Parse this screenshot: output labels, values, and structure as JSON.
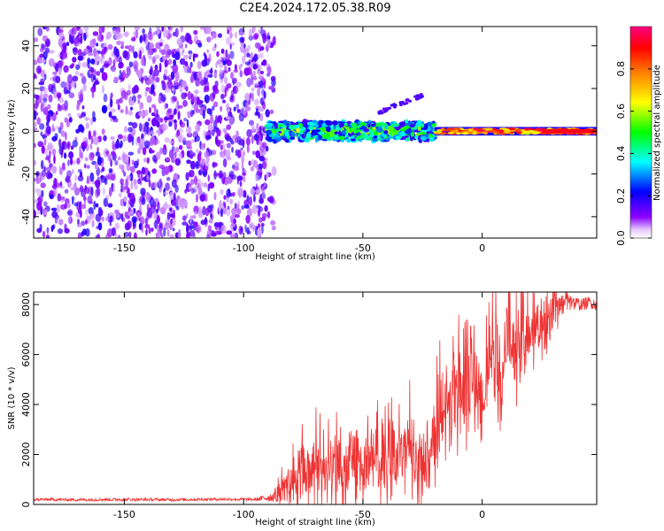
{
  "title": "C2E4.2024.172.05.38.R09",
  "chart_data": [
    {
      "type": "heatmap",
      "xlabel": "Height of straight line (km)",
      "ylabel": "Frequency (Hz)",
      "xlim": [
        -188,
        48
      ],
      "ylim": [
        -50,
        49
      ],
      "xticks": [
        -150,
        -100,
        -50,
        0
      ],
      "yticks": [
        -40,
        -20,
        0,
        20,
        40
      ],
      "colorbar": {
        "label": "Normalized spectral amplitude",
        "range": [
          0,
          1
        ],
        "ticks": [
          "0.0",
          "0.2",
          "0.4",
          "0.6",
          "0.8"
        ],
        "colors": [
          "#ffffff",
          "#e4c8ff",
          "#8b00ff",
          "#0000ff",
          "#00ffff",
          "#00ff00",
          "#ffff00",
          "#ff8000",
          "#ff0000",
          "#ff0080"
        ]
      },
      "regions": [
        {
          "x": [
            -188,
            -87
          ],
          "y": [
            -50,
            49
          ],
          "amplitude": [
            0.05,
            0.2
          ],
          "pattern": "scattered noise"
        },
        {
          "x": [
            -90,
            -20
          ],
          "y": [
            -5,
            5
          ],
          "amplitude": [
            0.15,
            0.7
          ],
          "pattern": "broadened signal band"
        },
        {
          "x": [
            -20,
            48
          ],
          "y": [
            -2,
            2
          ],
          "amplitude": [
            0.6,
            1.0
          ],
          "pattern": "narrow signal line"
        }
      ],
      "grid": false
    },
    {
      "type": "line",
      "xlabel": "Height of straight line (km)",
      "ylabel": "SNR (10 * v/v)",
      "xlim": [
        -188,
        48
      ],
      "ylim": [
        0,
        8500
      ],
      "xticks": [
        -150,
        -100,
        -50,
        0
      ],
      "yticks": [
        0,
        2000,
        4000,
        6000,
        8000
      ],
      "color": "#ee3333",
      "series": [
        {
          "x": [
            -188,
            -170,
            -150,
            -130,
            -110,
            -95,
            -88,
            -82,
            -78,
            -74,
            -72,
            -70,
            -66,
            -62,
            -58,
            -54,
            -50,
            -46,
            -42,
            -38,
            -34,
            -30,
            -26,
            -24,
            -22,
            -20,
            -17,
            -14,
            -11,
            -8,
            -5,
            -2,
            0,
            2,
            5,
            8,
            11,
            14,
            17,
            20,
            23,
            26,
            29,
            32,
            35,
            38,
            42,
            45,
            48
          ],
          "y": [
            200,
            190,
            200,
            190,
            210,
            200,
            300,
            700,
            1200,
            1600,
            900,
            1800,
            1200,
            1700,
            1400,
            2000,
            1500,
            2100,
            1600,
            2300,
            1800,
            2500,
            2000,
            1800,
            1500,
            3000,
            4200,
            3600,
            5200,
            4400,
            5800,
            4600,
            4000,
            5600,
            6400,
            5400,
            7000,
            6100,
            7600,
            6800,
            7400,
            7100,
            7700,
            7900,
            8100,
            8050,
            8000,
            8100,
            8000
          ],
          "noise_amplitude": [
            60,
            60,
            60,
            60,
            60,
            60,
            200,
            600,
            900,
            1200,
            900,
            1200,
            1000,
            1100,
            1000,
            1300,
            1100,
            1300,
            1100,
            1300,
            1100,
            1300,
            1200,
            1000,
            900,
            1200,
            1400,
            1300,
            1600,
            1400,
            1500,
            1300,
            1200,
            1300,
            1400,
            1300,
            1400,
            1300,
            1200,
            1000,
            900,
            800,
            700,
            500,
            400,
            300,
            250,
            250,
            250
          ]
        }
      ],
      "grid": false
    }
  ]
}
